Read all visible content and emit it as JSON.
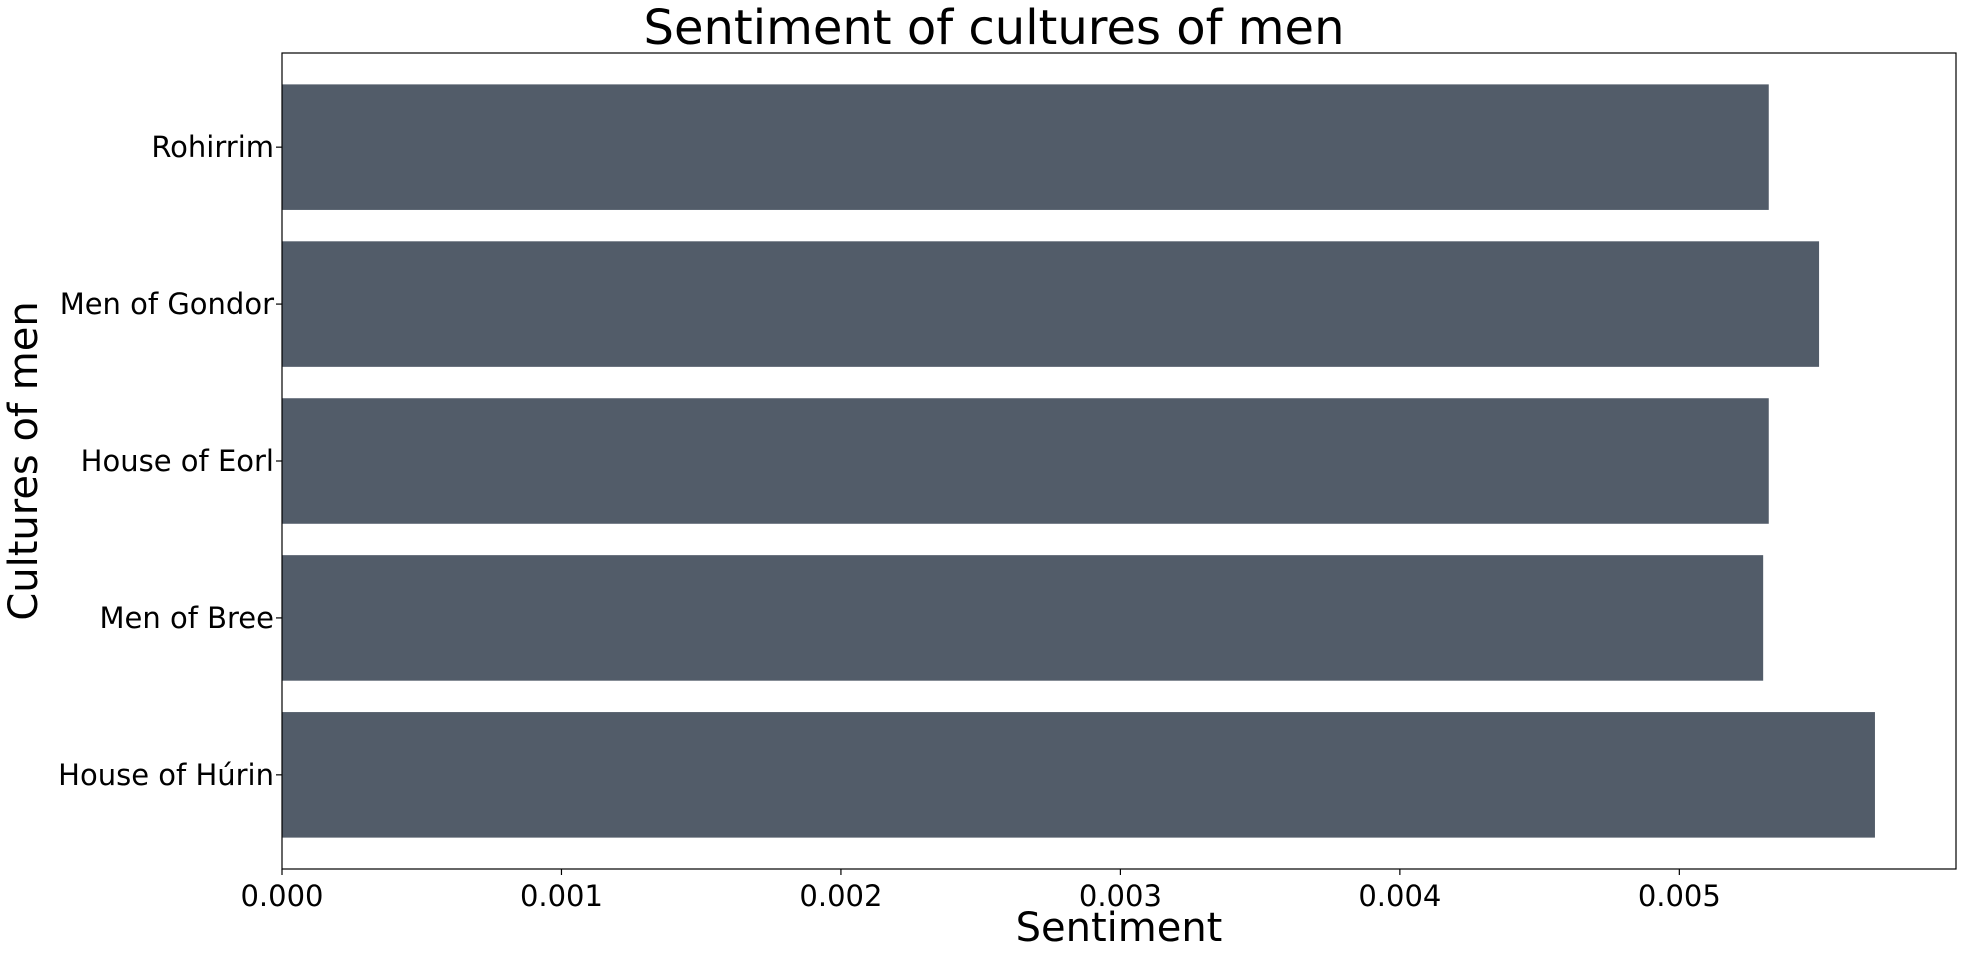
{
  "chart_data": {
    "type": "bar",
    "orientation": "horizontal",
    "title": "Sentiment of cultures of men",
    "xlabel": "Sentiment",
    "ylabel": "Cultures of men",
    "categories": [
      "Rohirrim",
      "Men of Gondor",
      "House of Eorl",
      "Men of Bree",
      "House of Húrin"
    ],
    "values": [
      0.00532,
      0.0055,
      0.00532,
      0.0053,
      0.0057
    ],
    "xlim": [
      0,
      0.00599
    ],
    "xticks": [
      "0.000",
      "0.001",
      "0.002",
      "0.003",
      "0.004",
      "0.005"
    ],
    "bar_color": "#525c69",
    "grid": false,
    "legend": "none"
  }
}
